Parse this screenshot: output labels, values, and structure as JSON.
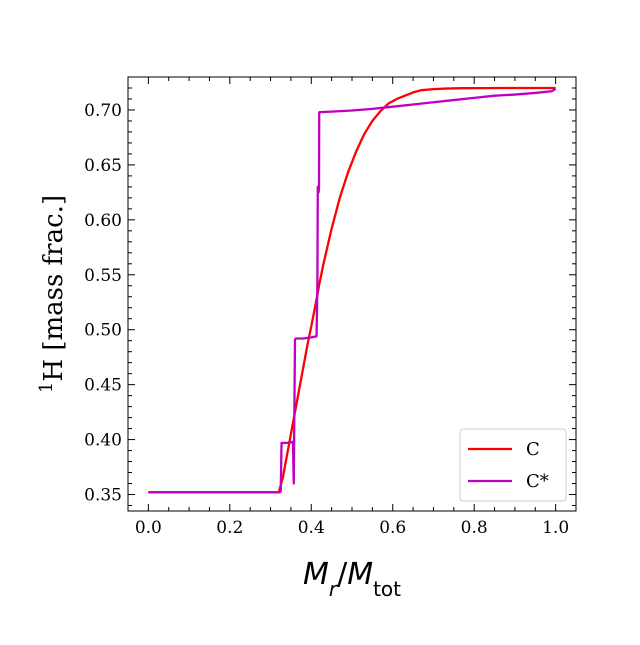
{
  "chart_data": {
    "type": "line",
    "xlabel": "M_r / M_tot",
    "ylabel": "1H [mass frac.]",
    "xlim": [
      -0.05,
      1.05
    ],
    "ylim": [
      0.335,
      0.73
    ],
    "xticks": [
      "0.0",
      "0.2",
      "0.4",
      "0.6",
      "0.8",
      "1.0"
    ],
    "yticks": [
      "0.35",
      "0.40",
      "0.45",
      "0.50",
      "0.55",
      "0.60",
      "0.65",
      "0.70"
    ],
    "grid": false,
    "legend_position": "lower right",
    "series": [
      {
        "name": "C",
        "color": "#ff0000",
        "x": [
          0.0,
          0.3,
          0.32,
          0.33,
          0.34,
          0.35,
          0.36,
          0.37,
          0.38,
          0.39,
          0.4,
          0.41,
          0.42,
          0.43,
          0.44,
          0.45,
          0.47,
          0.49,
          0.51,
          0.53,
          0.55,
          0.57,
          0.59,
          0.61,
          0.63,
          0.65,
          0.67,
          0.7,
          0.73,
          0.77,
          0.82,
          0.88,
          0.94,
          1.0
        ],
        "y": [
          0.352,
          0.352,
          0.352,
          0.365,
          0.385,
          0.405,
          0.425,
          0.445,
          0.465,
          0.485,
          0.503,
          0.522,
          0.542,
          0.56,
          0.576,
          0.592,
          0.62,
          0.643,
          0.662,
          0.678,
          0.69,
          0.699,
          0.706,
          0.71,
          0.713,
          0.716,
          0.718,
          0.719,
          0.7195,
          0.7198,
          0.7199,
          0.72,
          0.72,
          0.72
        ]
      },
      {
        "name": "C*",
        "color": "#c000c0",
        "x": [
          0.0,
          0.323,
          0.325,
          0.327,
          0.345,
          0.355,
          0.357,
          0.36,
          0.362,
          0.365,
          0.38,
          0.4,
          0.413,
          0.415,
          0.416,
          0.418,
          0.419,
          0.4195,
          0.42,
          0.45,
          0.5,
          0.55,
          0.6,
          0.65,
          0.7,
          0.75,
          0.8,
          0.85,
          0.9,
          0.95,
          0.99,
          0.995,
          1.0
        ],
        "y": [
          0.352,
          0.352,
          0.353,
          0.397,
          0.397,
          0.398,
          0.36,
          0.491,
          0.492,
          0.492,
          0.492,
          0.493,
          0.494,
          0.54,
          0.63,
          0.625,
          0.63,
          0.697,
          0.698,
          0.6985,
          0.6995,
          0.701,
          0.703,
          0.705,
          0.707,
          0.709,
          0.711,
          0.713,
          0.714,
          0.7155,
          0.717,
          0.718,
          0.7195
        ]
      }
    ]
  }
}
